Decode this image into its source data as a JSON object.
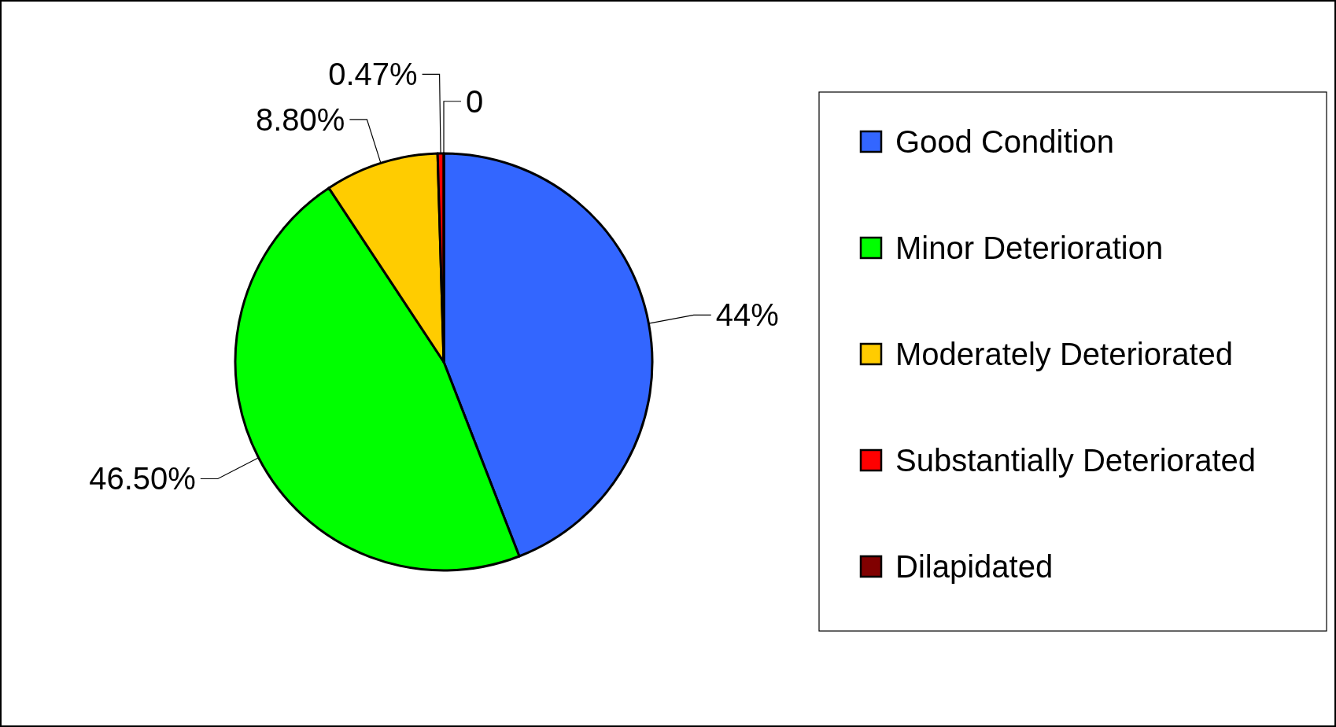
{
  "chart_data": {
    "type": "pie",
    "categories": [
      "Good Condition",
      "Minor Deterioration",
      "Moderately Deteriorated",
      "Substantially Deteriorated",
      "Dilapidated"
    ],
    "values": [
      44,
      46.5,
      8.8,
      0.47,
      0
    ],
    "value_labels": [
      "44%",
      "46.50%",
      "8.80%",
      "0.47%",
      "0"
    ],
    "colors": [
      "#3366ff",
      "#00ff00",
      "#ffcc00",
      "#ff0000",
      "#800000"
    ],
    "legend": "right"
  }
}
